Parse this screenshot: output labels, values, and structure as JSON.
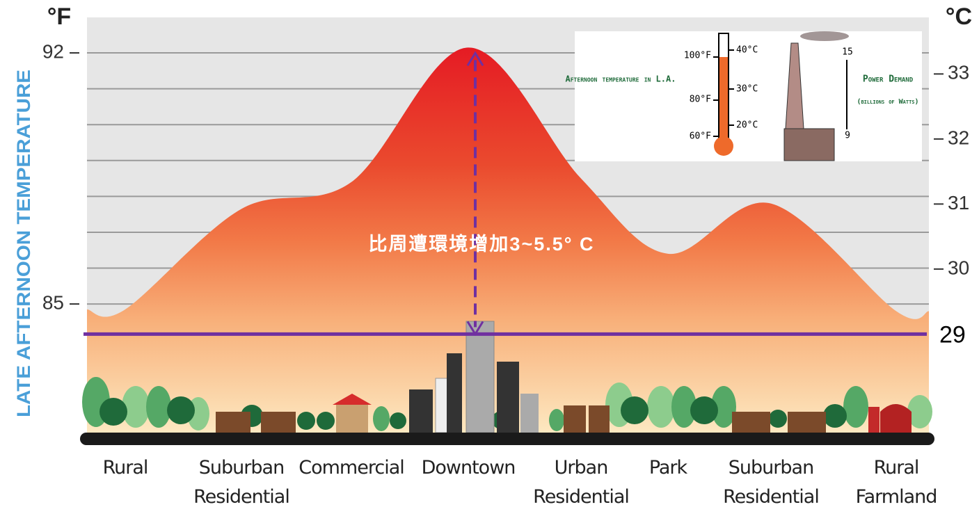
{
  "chart_data": {
    "type": "area",
    "y_unit_label": "°F",
    "y2_unit_label": "°C",
    "ylabel": "LATE AFTERNOON TEMPERATURE",
    "categories": [
      "Rural",
      "Suburban Residential",
      "Commercial",
      "Downtown",
      "Urban Residential",
      "Park",
      "Suburban Residential",
      "Rural Farmland"
    ],
    "values": [
      84.85,
      87.65,
      88.4,
      92.15,
      88.5,
      86.4,
      87.8,
      84.8
    ],
    "ylim": [
      81.26,
      92.99
    ],
    "yticks": [
      85,
      92
    ],
    "minor_yticks": [
      86,
      87,
      88,
      89,
      90,
      91
    ],
    "grid": true,
    "y2lim": [
      27.4,
      33.87
    ],
    "y2ticks": [
      29,
      30,
      31,
      32,
      33
    ],
    "reference_line": {
      "axis": "y2",
      "value": 29,
      "color": "#7030a0"
    },
    "annotation": "比周遭環境增加3~5.5° C",
    "inset": {
      "temperature_title": "Afternoon temperature in L.A.",
      "f_labels": [
        "100°F",
        "80°F",
        "60°F"
      ],
      "c_labels": [
        "40°C",
        "30°C",
        "20°C"
      ],
      "power_title": "Power Demand",
      "power_unit": "(billions of Watts)",
      "power_labels": [
        "15",
        "9"
      ]
    }
  }
}
